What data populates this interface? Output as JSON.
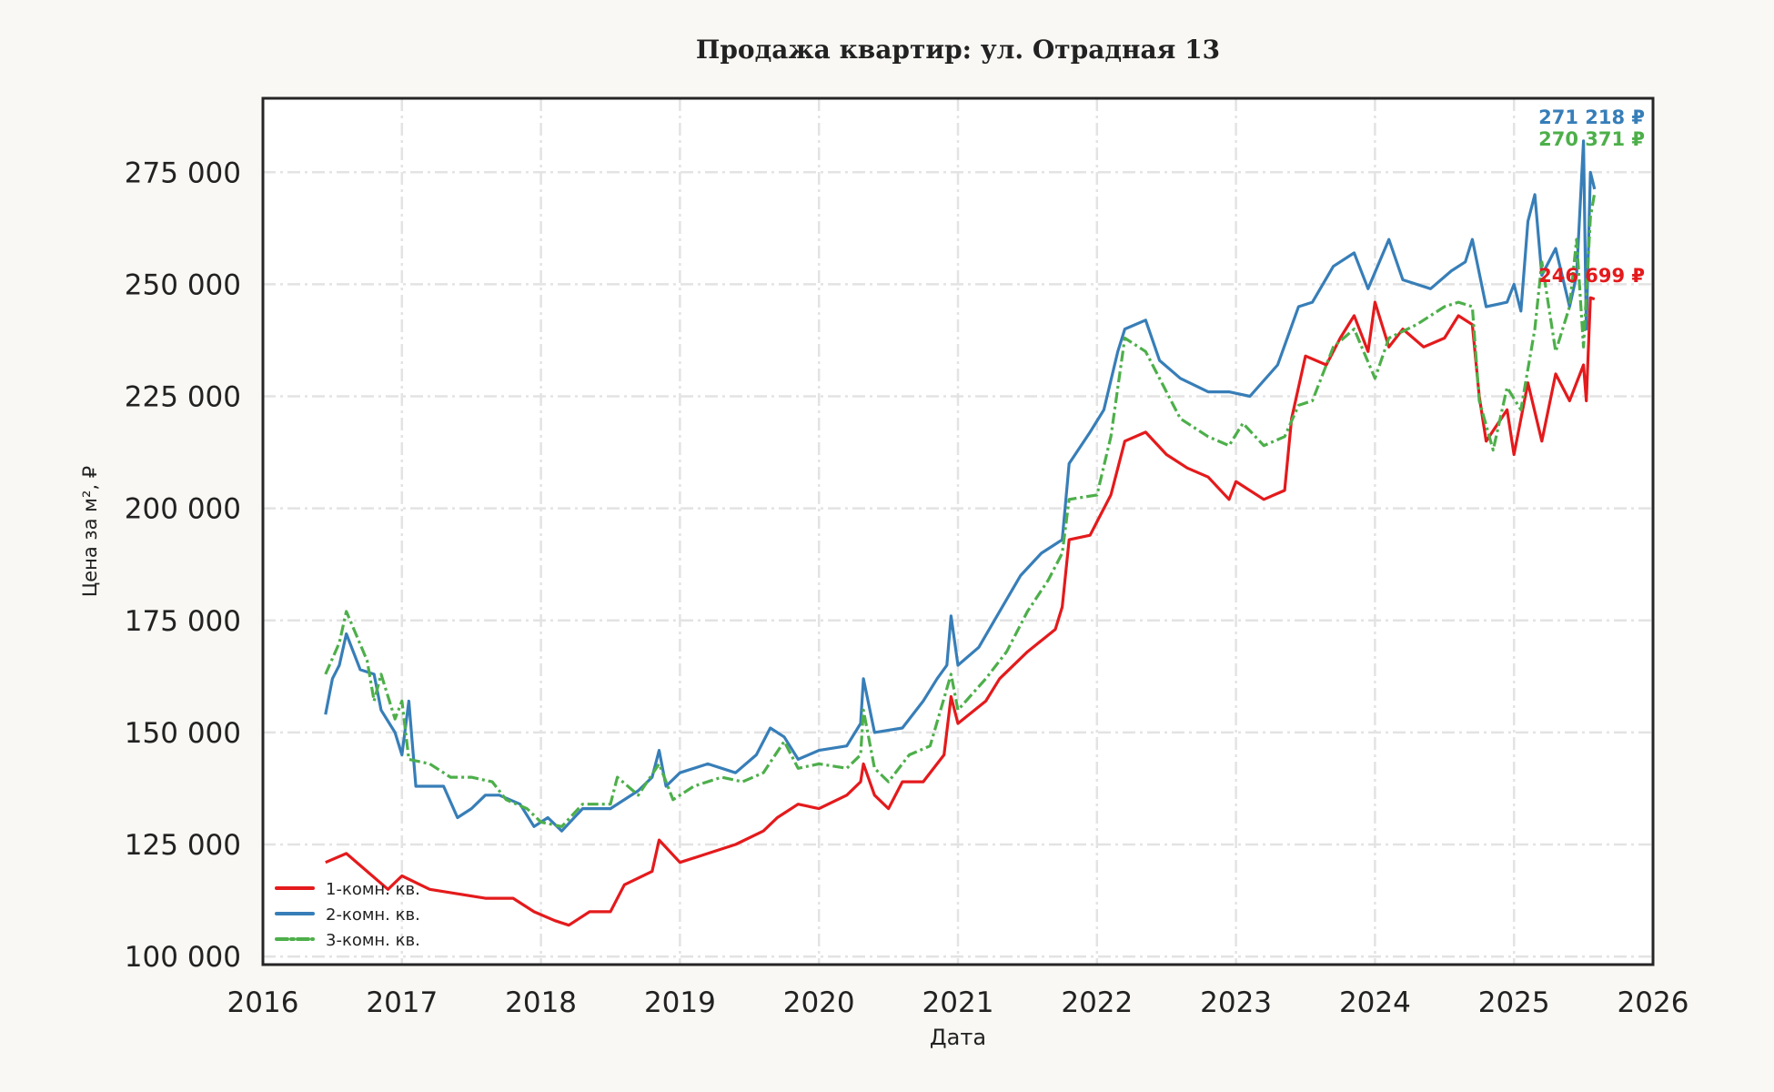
{
  "chart_data": {
    "type": "line",
    "title": "Продажа квартир: ул. Отрадная 13",
    "xlabel": "Дата",
    "ylabel": "Цена за м², ₽",
    "xlim": [
      2016,
      2026
    ],
    "ylim": [
      98200,
      291500
    ],
    "grid": true,
    "legend_placement": "lower-left",
    "x_ticks": [
      2016,
      2017,
      2018,
      2019,
      2020,
      2021,
      2022,
      2023,
      2024,
      2025,
      2026
    ],
    "x_tick_labels": [
      "2016",
      "2017",
      "2018",
      "2019",
      "2020",
      "2021",
      "2022",
      "2023",
      "2024",
      "2025",
      "2026"
    ],
    "y_ticks": [
      100000,
      125000,
      150000,
      175000,
      200000,
      225000,
      250000,
      275000
    ],
    "y_tick_labels": [
      "100 000",
      "125 000",
      "150 000",
      "175 000",
      "200 000",
      "225 000",
      "250 000",
      "275 000"
    ],
    "series": [
      {
        "name": "1-комн. кв.",
        "color": "#e41a1c",
        "style": "solid",
        "end_label": "246 699 ₽",
        "end_value": 246699,
        "x": [
          2016.45,
          2016.6,
          2016.75,
          2016.9,
          2017.0,
          2017.2,
          2017.4,
          2017.6,
          2017.8,
          2017.95,
          2018.1,
          2018.2,
          2018.35,
          2018.5,
          2018.6,
          2018.8,
          2018.85,
          2019.0,
          2019.2,
          2019.4,
          2019.6,
          2019.7,
          2019.85,
          2020.0,
          2020.2,
          2020.3,
          2020.32,
          2020.4,
          2020.5,
          2020.6,
          2020.75,
          2020.9,
          2020.95,
          2021.0,
          2021.2,
          2021.3,
          2021.5,
          2021.7,
          2021.75,
          2021.8,
          2021.95,
          2022.0,
          2022.1,
          2022.2,
          2022.35,
          2022.5,
          2022.65,
          2022.8,
          2022.95,
          2023.0,
          2023.2,
          2023.35,
          2023.4,
          2023.5,
          2023.65,
          2023.75,
          2023.85,
          2023.95,
          2024.0,
          2024.1,
          2024.2,
          2024.35,
          2024.5,
          2024.6,
          2024.7,
          2024.75,
          2024.8,
          2024.95,
          2025.0,
          2025.1,
          2025.2,
          2025.3,
          2025.4,
          2025.5,
          2025.52,
          2025.55,
          2025.58
        ],
        "y": [
          121000,
          123000,
          119000,
          115000,
          118000,
          115000,
          114000,
          113000,
          113000,
          110000,
          108000,
          107000,
          110000,
          110000,
          116000,
          119000,
          126000,
          121000,
          123000,
          125000,
          128000,
          131000,
          134000,
          133000,
          136000,
          139000,
          143000,
          136000,
          133000,
          139000,
          139000,
          145000,
          158000,
          152000,
          157000,
          162000,
          168000,
          173000,
          178000,
          193000,
          194000,
          197000,
          203000,
          215000,
          217000,
          212000,
          209000,
          207000,
          202000,
          206000,
          202000,
          204000,
          220000,
          234000,
          232000,
          238000,
          243000,
          235000,
          246000,
          236000,
          240000,
          236000,
          238000,
          243000,
          241000,
          225000,
          215000,
          222000,
          212000,
          228000,
          215000,
          230000,
          224000,
          232000,
          224000,
          247000,
          246699
        ]
      },
      {
        "name": "2-комн. кв.",
        "color": "#377eb8",
        "style": "solid",
        "end_label": "271 218 ₽",
        "end_value": 271218,
        "x": [
          2016.45,
          2016.5,
          2016.55,
          2016.6,
          2016.7,
          2016.8,
          2016.85,
          2016.95,
          2017.0,
          2017.05,
          2017.1,
          2017.3,
          2017.4,
          2017.5,
          2017.6,
          2017.7,
          2017.85,
          2017.95,
          2018.05,
          2018.15,
          2018.3,
          2018.5,
          2018.7,
          2018.8,
          2018.85,
          2018.9,
          2019.0,
          2019.2,
          2019.4,
          2019.55,
          2019.65,
          2019.75,
          2019.85,
          2020.0,
          2020.2,
          2020.3,
          2020.32,
          2020.4,
          2020.6,
          2020.75,
          2020.85,
          2020.92,
          2020.95,
          2021.0,
          2021.15,
          2021.3,
          2021.45,
          2021.6,
          2021.75,
          2021.8,
          2021.95,
          2022.05,
          2022.15,
          2022.2,
          2022.35,
          2022.45,
          2022.6,
          2022.8,
          2022.95,
          2023.1,
          2023.3,
          2023.45,
          2023.55,
          2023.7,
          2023.85,
          2023.95,
          2024.1,
          2024.2,
          2024.4,
          2024.55,
          2024.65,
          2024.7,
          2024.8,
          2024.95,
          2025.0,
          2025.05,
          2025.1,
          2025.15,
          2025.2,
          2025.3,
          2025.4,
          2025.45,
          2025.5,
          2025.52,
          2025.55,
          2025.58
        ],
        "y": [
          154000,
          162000,
          165000,
          172000,
          164000,
          163000,
          155000,
          150000,
          145000,
          157000,
          138000,
          138000,
          131000,
          133000,
          136000,
          136000,
          134000,
          129000,
          131000,
          128000,
          133000,
          133000,
          137000,
          140000,
          146000,
          138000,
          141000,
          143000,
          141000,
          145000,
          151000,
          149000,
          144000,
          146000,
          147000,
          152000,
          162000,
          150000,
          151000,
          157000,
          162000,
          165000,
          176000,
          165000,
          169000,
          177000,
          185000,
          190000,
          193000,
          210000,
          217000,
          222000,
          235000,
          240000,
          242000,
          233000,
          229000,
          226000,
          226000,
          225000,
          232000,
          245000,
          246000,
          254000,
          257000,
          249000,
          260000,
          251000,
          249000,
          253000,
          255000,
          260000,
          245000,
          246000,
          250000,
          244000,
          264000,
          270000,
          252000,
          258000,
          245000,
          252000,
          282000,
          240000,
          275000,
          271218
        ]
      },
      {
        "name": "3-комн. кв.",
        "color": "#4daf4a",
        "style": "dashdot",
        "end_label": "270 371 ₽",
        "end_value": 270371,
        "x": [
          2016.45,
          2016.55,
          2016.6,
          2016.75,
          2016.8,
          2016.85,
          2016.95,
          2017.0,
          2017.05,
          2017.2,
          2017.35,
          2017.5,
          2017.65,
          2017.75,
          2017.9,
          2018.0,
          2018.15,
          2018.3,
          2018.5,
          2018.55,
          2018.7,
          2018.85,
          2018.95,
          2019.1,
          2019.3,
          2019.45,
          2019.6,
          2019.75,
          2019.85,
          2020.0,
          2020.2,
          2020.3,
          2020.32,
          2020.4,
          2020.5,
          2020.65,
          2020.8,
          2020.95,
          2021.0,
          2021.2,
          2021.35,
          2021.5,
          2021.65,
          2021.75,
          2021.8,
          2022.0,
          2022.1,
          2022.2,
          2022.35,
          2022.5,
          2022.6,
          2022.8,
          2022.95,
          2023.05,
          2023.2,
          2023.35,
          2023.45,
          2023.55,
          2023.7,
          2023.85,
          2024.0,
          2024.1,
          2024.3,
          2024.5,
          2024.6,
          2024.7,
          2024.75,
          2024.85,
          2024.95,
          2025.05,
          2025.15,
          2025.2,
          2025.3,
          2025.4,
          2025.45,
          2025.5,
          2025.55,
          2025.58
        ],
        "y": [
          163000,
          170000,
          177000,
          166000,
          157000,
          163000,
          153000,
          157000,
          144000,
          143000,
          140000,
          140000,
          139000,
          135000,
          133000,
          130000,
          129000,
          134000,
          134000,
          140000,
          136000,
          143000,
          135000,
          138000,
          140000,
          139000,
          141000,
          148000,
          142000,
          143000,
          142000,
          145000,
          155000,
          142000,
          139000,
          145000,
          147000,
          163000,
          155000,
          162000,
          168000,
          177000,
          184000,
          190000,
          202000,
          203000,
          216000,
          238000,
          235000,
          226000,
          220000,
          216000,
          214000,
          219000,
          214000,
          216000,
          223000,
          224000,
          236000,
          240000,
          229000,
          238000,
          241000,
          245000,
          246000,
          245000,
          224000,
          213000,
          227000,
          222000,
          240000,
          255000,
          235000,
          245000,
          260000,
          236000,
          265000,
          270371
        ]
      }
    ]
  }
}
